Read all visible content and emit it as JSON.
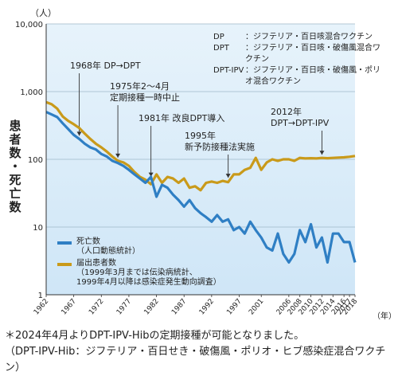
{
  "y_axis_label": "患者数・死亡数",
  "y_unit": "（人）",
  "x_unit": "（年）",
  "legend_box": [
    {
      "key": "DP",
      "desc": "：ジフテリア・百日咳混合ワクチン"
    },
    {
      "key": "DPT",
      "desc": "：ジフテリア・百日咳・破傷風混合ワクチン"
    },
    {
      "key": "DPT-IPV",
      "desc": "：ジフテリア・百日咳・破傷風・ポリオ混合ワクチン"
    }
  ],
  "annotations": {
    "a1968": "1968年 DP→DPT",
    "a1975": "1975年2～4月\n定期接種一時中止",
    "a1981": "1981年 改良DPT導入",
    "a1995": "1995年\n新予防接種法実施",
    "a2012": "2012年\nDPT→DPT-IPV"
  },
  "series_legend": {
    "deaths_name": "死亡数",
    "deaths_note": "（人口動態統計）",
    "patients_name": "届出患者数",
    "patients_note": "（1999年3月までは伝染病統計、\n1999年4月以降は感染症発生動向調査）"
  },
  "footnote": {
    "line1": "＊2024年4月よりDPT-IPV-Hibの定期接種が可能となりました。",
    "line2": "（DPT-IPV-Hib：ジフテリア・百日せき・破傷風・ポリオ・ヒブ感染症混合ワクチン）"
  },
  "colors": {
    "deaths": "#2f7fc4",
    "patients": "#c99a1a",
    "bg_top": "#ffffff",
    "bg_shade": "#cfe6f7"
  },
  "chart_data": {
    "type": "line",
    "y_scale": "log",
    "ylim": [
      1,
      10000
    ],
    "y_ticks": [
      "1",
      "10",
      "100",
      "1,000",
      "10,000"
    ],
    "xlim": [
      1962,
      2018
    ],
    "x_ticks": [
      "1962",
      "1967",
      "1972",
      "1977",
      "1982",
      "1987",
      "1992",
      "1997",
      "2001",
      "2006",
      "2008",
      "2010",
      "2012",
      "2014",
      "2016",
      "2017",
      "2018"
    ],
    "series": [
      {
        "name": "届出患者数",
        "points": [
          [
            1962,
            700
          ],
          [
            1963,
            650
          ],
          [
            1964,
            560
          ],
          [
            1965,
            430
          ],
          [
            1966,
            370
          ],
          [
            1967,
            330
          ],
          [
            1968,
            290
          ],
          [
            1969,
            240
          ],
          [
            1970,
            200
          ],
          [
            1971,
            170
          ],
          [
            1972,
            150
          ],
          [
            1973,
            130
          ],
          [
            1974,
            110
          ],
          [
            1975,
            95
          ],
          [
            1976,
            90
          ],
          [
            1977,
            80
          ],
          [
            1978,
            65
          ],
          [
            1979,
            55
          ],
          [
            1980,
            50
          ],
          [
            1981,
            43
          ],
          [
            1982,
            60
          ],
          [
            1983,
            45
          ],
          [
            1984,
            55
          ],
          [
            1985,
            52
          ],
          [
            1986,
            45
          ],
          [
            1987,
            52
          ],
          [
            1988,
            38
          ],
          [
            1989,
            40
          ],
          [
            1990,
            35
          ],
          [
            1991,
            45
          ],
          [
            1992,
            47
          ],
          [
            1993,
            45
          ],
          [
            1994,
            48
          ],
          [
            1995,
            46
          ],
          [
            1996,
            60
          ],
          [
            1997,
            60
          ],
          [
            1998,
            70
          ],
          [
            1999,
            75
          ],
          [
            2000,
            105
          ],
          [
            2001,
            70
          ],
          [
            2002,
            90
          ],
          [
            2003,
            100
          ],
          [
            2004,
            95
          ],
          [
            2005,
            100
          ],
          [
            2006,
            100
          ],
          [
            2007,
            95
          ],
          [
            2008,
            105
          ],
          [
            2009,
            103
          ],
          [
            2010,
            104
          ],
          [
            2011,
            103
          ],
          [
            2012,
            105
          ],
          [
            2013,
            104
          ],
          [
            2014,
            105
          ],
          [
            2015,
            106
          ],
          [
            2016,
            107
          ],
          [
            2017,
            109
          ],
          [
            2018,
            112
          ]
        ]
      },
      {
        "name": "死亡数",
        "points": [
          [
            1962,
            500
          ],
          [
            1963,
            460
          ],
          [
            1964,
            420
          ],
          [
            1965,
            340
          ],
          [
            1966,
            280
          ],
          [
            1967,
            230
          ],
          [
            1968,
            200
          ],
          [
            1969,
            170
          ],
          [
            1970,
            150
          ],
          [
            1971,
            140
          ],
          [
            1972,
            120
          ],
          [
            1973,
            110
          ],
          [
            1974,
            95
          ],
          [
            1975,
            88
          ],
          [
            1976,
            80
          ],
          [
            1977,
            70
          ],
          [
            1978,
            60
          ],
          [
            1979,
            52
          ],
          [
            1980,
            45
          ],
          [
            1981,
            55
          ],
          [
            1982,
            28
          ],
          [
            1983,
            42
          ],
          [
            1984,
            38
          ],
          [
            1985,
            30
          ],
          [
            1986,
            25
          ],
          [
            1987,
            20
          ],
          [
            1988,
            25
          ],
          [
            1989,
            19
          ],
          [
            1990,
            16
          ],
          [
            1991,
            14
          ],
          [
            1992,
            12
          ],
          [
            1993,
            15
          ],
          [
            1994,
            12
          ],
          [
            1995,
            13
          ],
          [
            1996,
            9
          ],
          [
            1997,
            10
          ],
          [
            1998,
            8
          ],
          [
            1999,
            12
          ],
          [
            2000,
            9
          ],
          [
            2001,
            7
          ],
          [
            2002,
            5
          ],
          [
            2003,
            4.5
          ],
          [
            2004,
            8
          ],
          [
            2005,
            4
          ],
          [
            2006,
            3
          ],
          [
            2007,
            4
          ],
          [
            2008,
            9
          ],
          [
            2009,
            6
          ],
          [
            2010,
            11
          ],
          [
            2011,
            5
          ],
          [
            2012,
            7
          ],
          [
            2013,
            3
          ],
          [
            2014,
            8
          ],
          [
            2015,
            8
          ],
          [
            2016,
            6
          ],
          [
            2017,
            6
          ],
          [
            2018,
            3
          ]
        ]
      }
    ]
  }
}
